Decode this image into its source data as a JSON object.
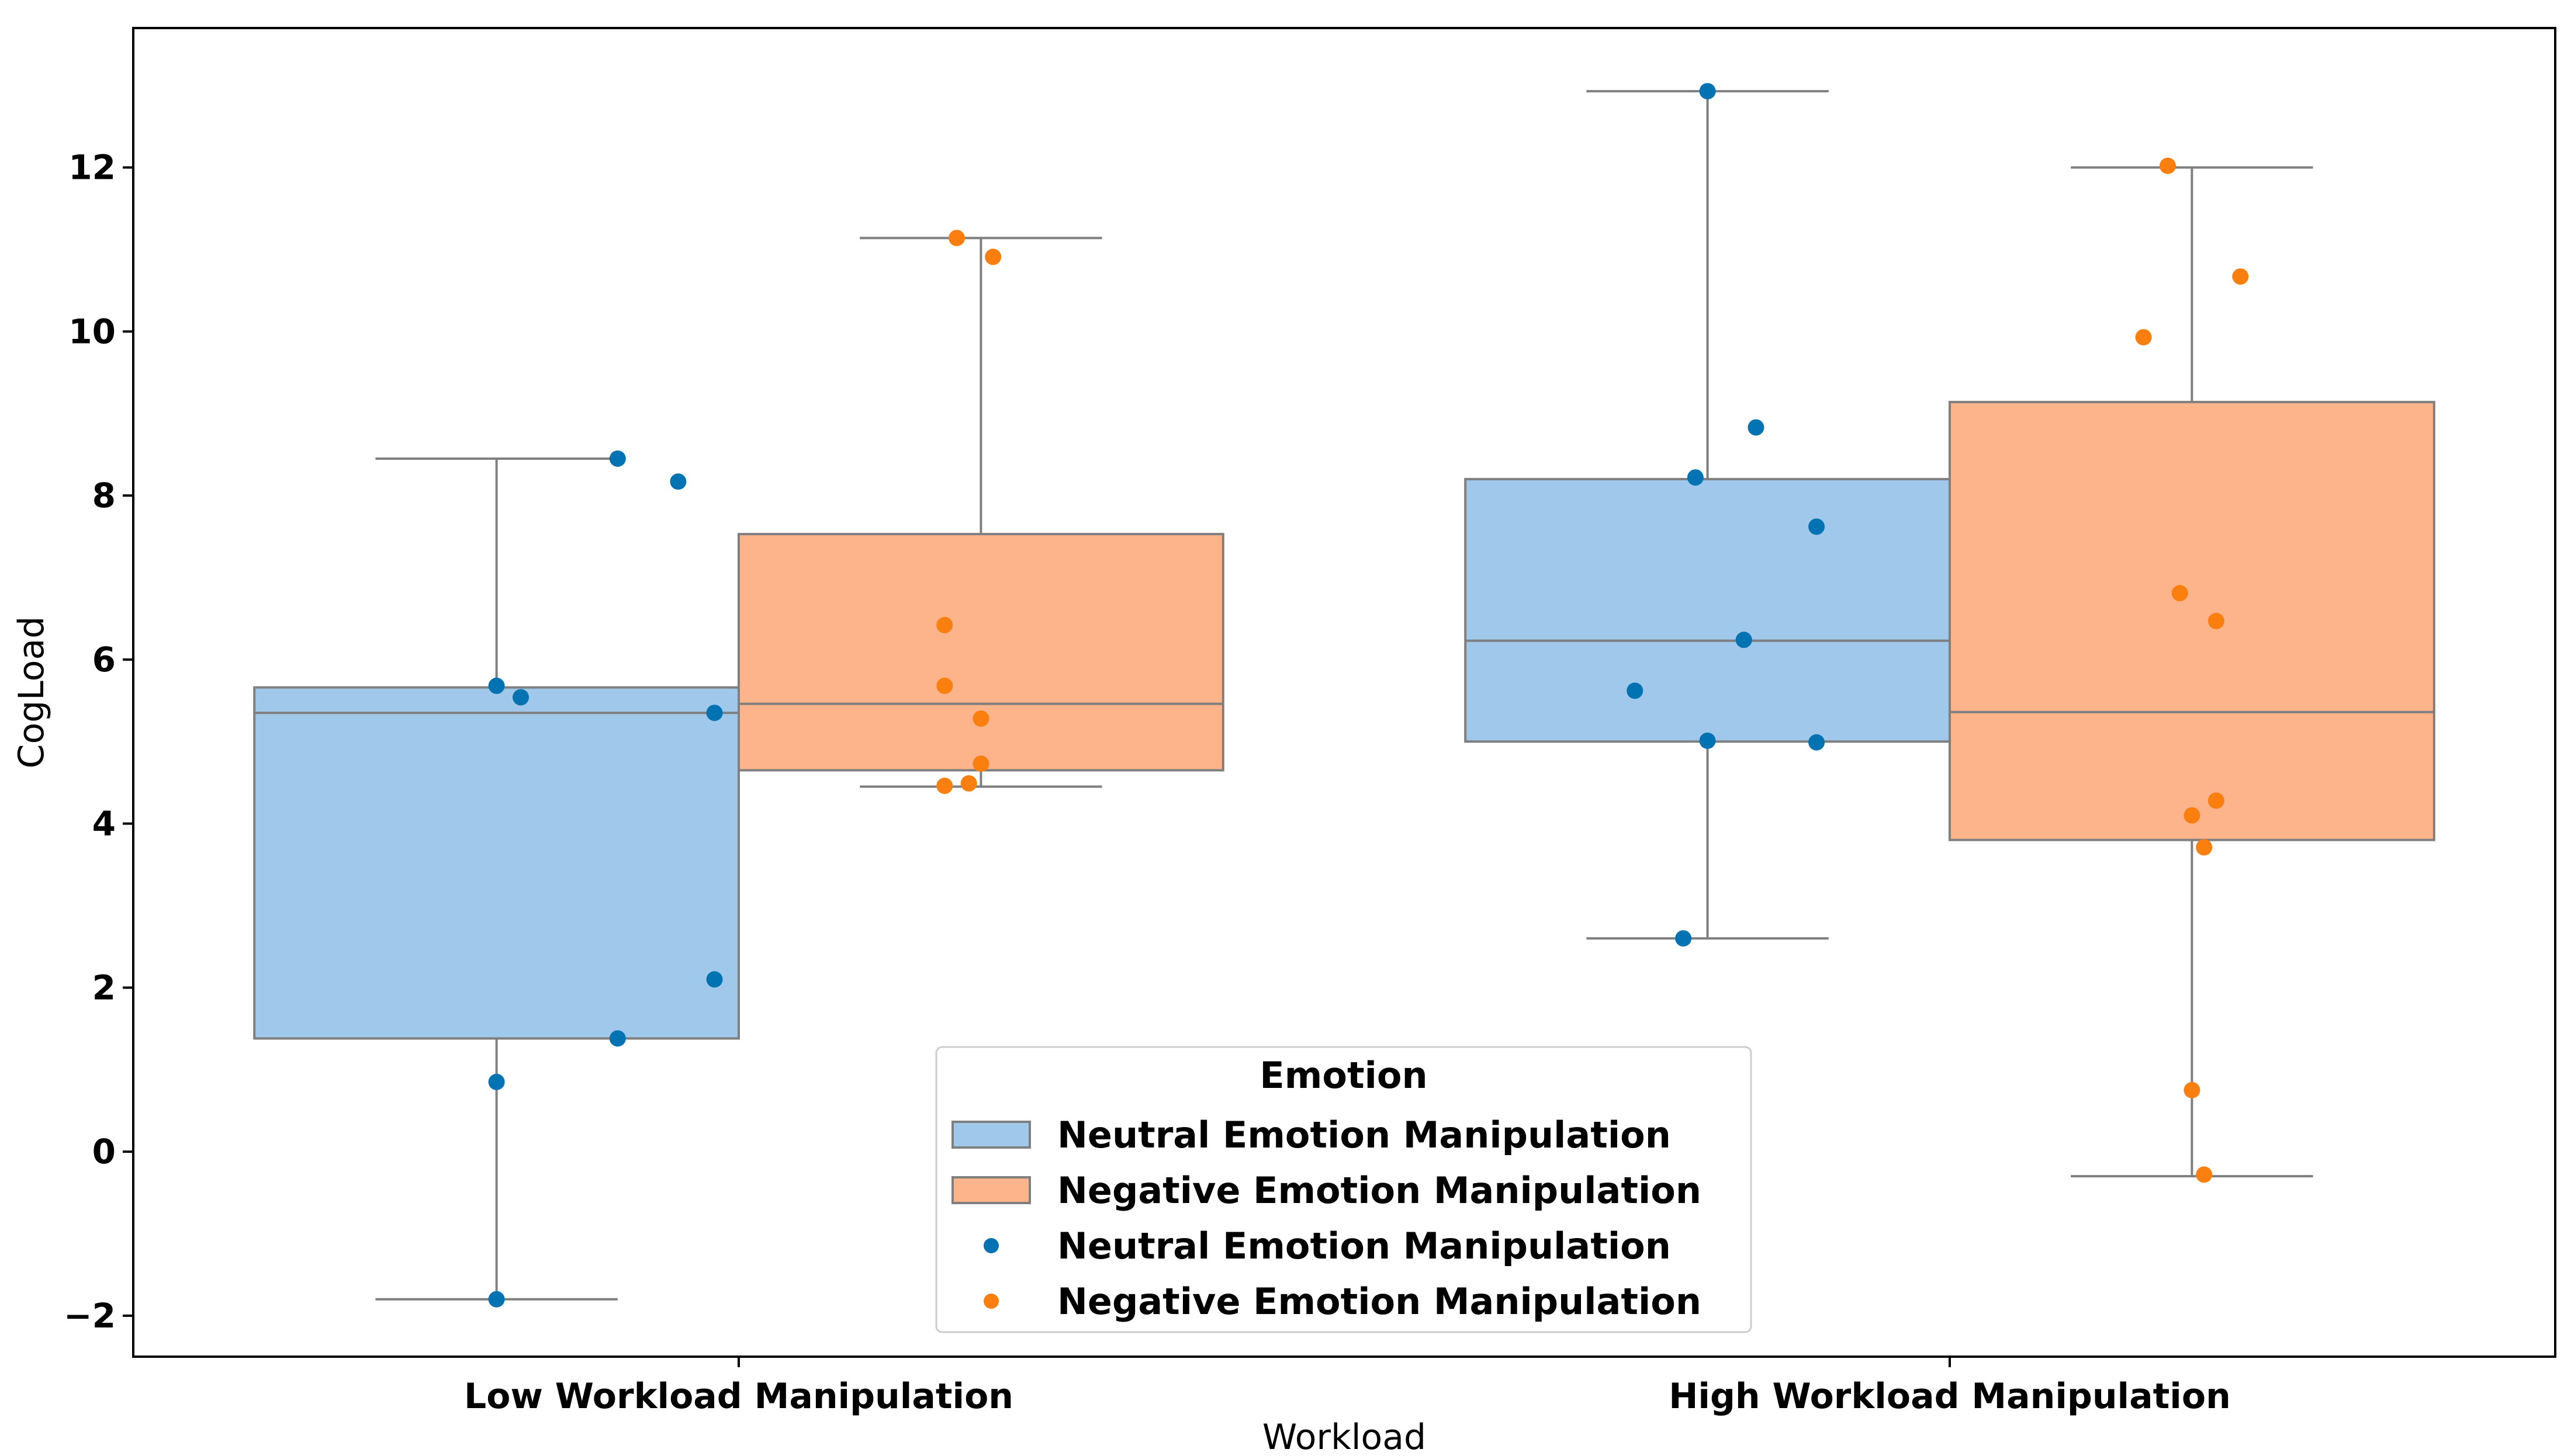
{
  "chart_data": {
    "type": "box",
    "xlabel": "Workload",
    "ylabel": "CogLoad",
    "categories": [
      "Low Workload Manipulation",
      "High Workload Manipulation"
    ],
    "ylim": [
      -2.5,
      13.7
    ],
    "yticks": [
      -2,
      0,
      2,
      4,
      6,
      8,
      10,
      12
    ],
    "ytick_labels": [
      "−2",
      "0",
      "2",
      "4",
      "6",
      "8",
      "10",
      "12"
    ],
    "grid": false,
    "legend": {
      "title": "Emotion",
      "placement": "lower center",
      "entries": [
        {
          "label": "Neutral Emotion Manipulation",
          "kind": "box",
          "series": 0
        },
        {
          "label": "Negative Emotion Manipulation",
          "kind": "box",
          "series": 1
        },
        {
          "label": "Neutral Emotion Manipulation",
          "kind": "point",
          "series": 0
        },
        {
          "label": "Negative Emotion Manipulation",
          "kind": "point",
          "series": 1
        }
      ]
    },
    "series": [
      {
        "name": "Neutral Emotion Manipulation",
        "box_color": "#9fc8eb",
        "point_color": "#0173b2",
        "boxes": [
          {
            "category": "Low Workload Manipulation",
            "whisker_low": -1.8,
            "q1": 1.38,
            "median": 5.35,
            "q3": 5.66,
            "whisker_high": 8.45
          },
          {
            "category": "High Workload Manipulation",
            "whisker_low": 2.6,
            "q1": 5.0,
            "median": 6.23,
            "q3": 8.2,
            "whisker_high": 12.93
          }
        ],
        "points": [
          {
            "category": "Low Workload Manipulation",
            "jitter": -0.1,
            "y": 8.45
          },
          {
            "category": "Low Workload Manipulation",
            "jitter": -0.05,
            "y": 8.17
          },
          {
            "category": "Low Workload Manipulation",
            "jitter": -0.2,
            "y": 5.68
          },
          {
            "category": "Low Workload Manipulation",
            "jitter": -0.18,
            "y": 5.54
          },
          {
            "category": "Low Workload Manipulation",
            "jitter": -0.02,
            "y": 5.35
          },
          {
            "category": "Low Workload Manipulation",
            "jitter": -0.02,
            "y": 2.1
          },
          {
            "category": "Low Workload Manipulation",
            "jitter": -0.1,
            "y": 1.38
          },
          {
            "category": "Low Workload Manipulation",
            "jitter": -0.2,
            "y": 0.85
          },
          {
            "category": "Low Workload Manipulation",
            "jitter": -0.2,
            "y": -1.8
          },
          {
            "category": "High Workload Manipulation",
            "jitter": -0.2,
            "y": 12.93
          },
          {
            "category": "High Workload Manipulation",
            "jitter": -0.16,
            "y": 8.83
          },
          {
            "category": "High Workload Manipulation",
            "jitter": -0.21,
            "y": 8.22
          },
          {
            "category": "High Workload Manipulation",
            "jitter": -0.11,
            "y": 7.62
          },
          {
            "category": "High Workload Manipulation",
            "jitter": -0.17,
            "y": 6.24
          },
          {
            "category": "High Workload Manipulation",
            "jitter": -0.26,
            "y": 5.62
          },
          {
            "category": "High Workload Manipulation",
            "jitter": -0.2,
            "y": 5.01
          },
          {
            "category": "High Workload Manipulation",
            "jitter": -0.11,
            "y": 4.99
          },
          {
            "category": "High Workload Manipulation",
            "jitter": -0.22,
            "y": 2.6
          }
        ]
      },
      {
        "name": "Negative Emotion Manipulation",
        "box_color": "#fdb48b",
        "point_color": "#fb7f0e",
        "boxes": [
          {
            "category": "Low Workload Manipulation",
            "whisker_low": 4.45,
            "q1": 4.65,
            "median": 5.46,
            "q3": 7.53,
            "whisker_high": 11.14
          },
          {
            "category": "High Workload Manipulation",
            "whisker_low": -0.3,
            "q1": 3.8,
            "median": 5.36,
            "q3": 9.14,
            "whisker_high": 12.0
          }
        ],
        "points": [
          {
            "category": "Low Workload Manipulation",
            "jitter": 0.18,
            "y": 11.14
          },
          {
            "category": "Low Workload Manipulation",
            "jitter": 0.21,
            "y": 10.91
          },
          {
            "category": "Low Workload Manipulation",
            "jitter": 0.17,
            "y": 6.42
          },
          {
            "category": "Low Workload Manipulation",
            "jitter": 0.17,
            "y": 5.68
          },
          {
            "category": "Low Workload Manipulation",
            "jitter": 0.2,
            "y": 5.28
          },
          {
            "category": "Low Workload Manipulation",
            "jitter": 0.2,
            "y": 4.73
          },
          {
            "category": "Low Workload Manipulation",
            "jitter": 0.17,
            "y": 4.46
          },
          {
            "category": "Low Workload Manipulation",
            "jitter": 0.19,
            "y": 4.49
          },
          {
            "category": "High Workload Manipulation",
            "jitter": 0.18,
            "y": 12.02
          },
          {
            "category": "High Workload Manipulation",
            "jitter": 0.24,
            "y": 10.67
          },
          {
            "category": "High Workload Manipulation",
            "jitter": 0.16,
            "y": 9.93
          },
          {
            "category": "High Workload Manipulation",
            "jitter": 0.19,
            "y": 6.81
          },
          {
            "category": "High Workload Manipulation",
            "jitter": 0.22,
            "y": 6.47
          },
          {
            "category": "High Workload Manipulation",
            "jitter": 0.22,
            "y": 4.28
          },
          {
            "category": "High Workload Manipulation",
            "jitter": 0.2,
            "y": 4.1
          },
          {
            "category": "High Workload Manipulation",
            "jitter": 0.21,
            "y": 3.71
          },
          {
            "category": "High Workload Manipulation",
            "jitter": 0.2,
            "y": 0.75
          },
          {
            "category": "High Workload Manipulation",
            "jitter": 0.21,
            "y": -0.28
          }
        ]
      }
    ]
  }
}
